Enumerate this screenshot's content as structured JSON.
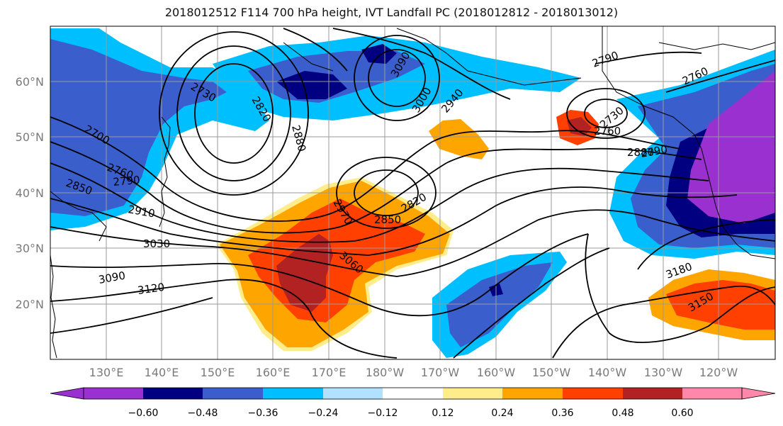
{
  "title": "2018012512 F114 700 hPa height, IVT Landfall PC (2018012812 - 2018013012)",
  "lat_labels": [
    "60°N",
    "50°N",
    "40°N",
    "30°N",
    "20°N"
  ],
  "lon_labels": [
    "130°E",
    "140°E",
    "150°E",
    "160°E",
    "170°E",
    "180°W",
    "170°W",
    "160°W",
    "150°W",
    "140°W",
    "130°W",
    "120°W"
  ],
  "colorbar": {
    "ticks": [
      "−0.60",
      "−0.48",
      "−0.36",
      "−0.24",
      "−0.12",
      "0.12",
      "0.24",
      "0.36",
      "0.48",
      "0.60"
    ],
    "colors": [
      "#9b30d0",
      "#000080",
      "#3a5fcd",
      "#00bfff",
      "#b0e2ff",
      "#ffffff",
      "#ffec8b",
      "#ffa500",
      "#ff4000",
      "#b22222",
      "#ff88aa"
    ]
  },
  "contour_labels": [
    "2700",
    "2730",
    "2760",
    "2790",
    "2820",
    "2850",
    "2880",
    "2910",
    "2940",
    "3000",
    "3030",
    "3060",
    "3090",
    "3120",
    "3150",
    "3180",
    "2970",
    "2760",
    "2790",
    "2820",
    "2730",
    "2790",
    "2850",
    "2760",
    "3090",
    "2880"
  ]
}
